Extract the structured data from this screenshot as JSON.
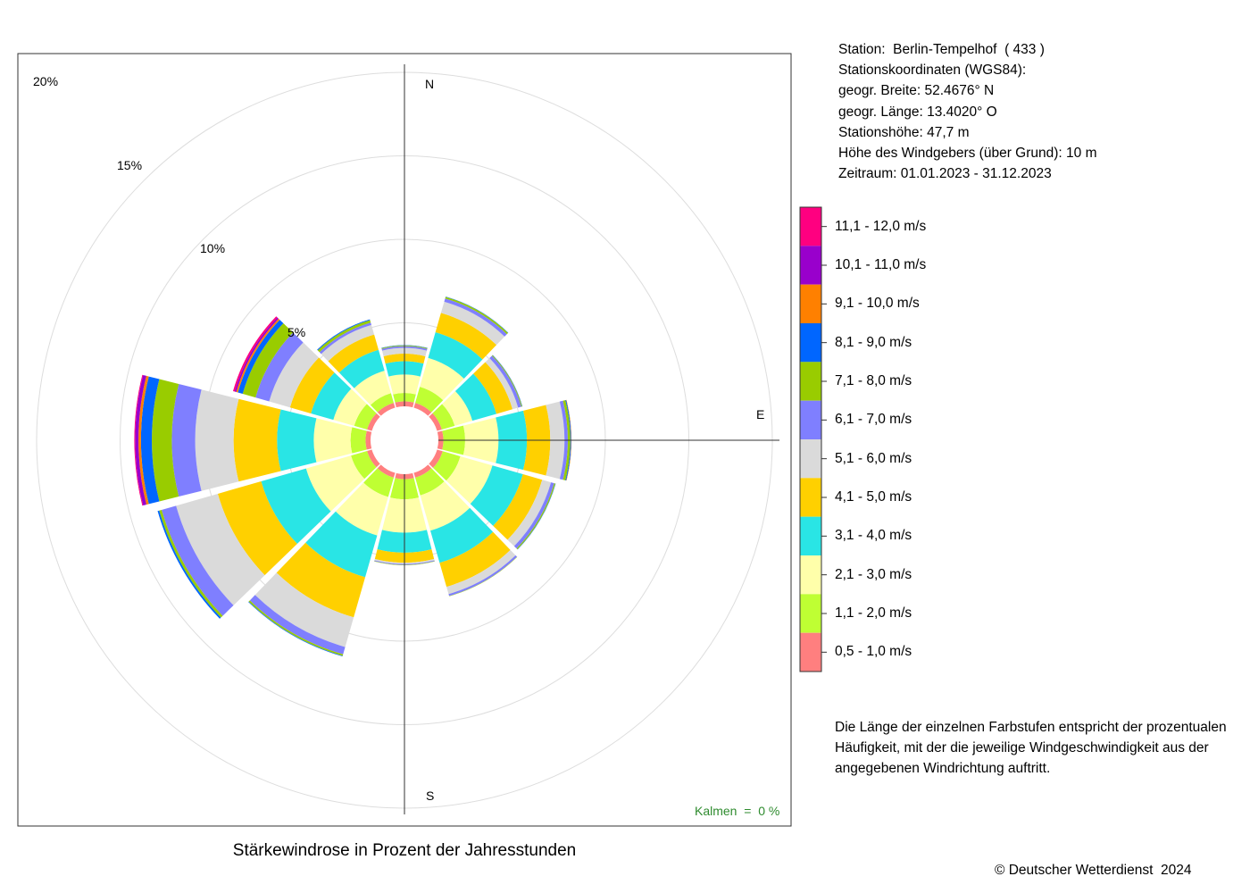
{
  "info": {
    "lines": [
      "Station:  Berlin-Tempelhof  ( 433 )",
      "Stationskoordinaten (WGS84):",
      "geogr. Breite: 52.4676° N",
      "geogr. Länge: 13.4020° O",
      "Stationshöhe: 47,7 m",
      "Höhe des Windgebers (über Grund): 10 m",
      "Zeitraum: 01.01.2023 - 31.12.2023"
    ]
  },
  "note": "Die Länge der einzelnen Farbstufen entspricht der prozentualen Häufigkeit, mit der die jeweilige Windgeschwindigkeit aus der angegebenen Windrichtung auftritt.",
  "caption": "Stärkewindrose in Prozent der Jahresstunden",
  "copyright": "© Deutscher Wetterdienst  2024",
  "calm_label": "Kalmen  =  0 %",
  "directions": {
    "n": "N",
    "e": "E",
    "s": "S"
  },
  "chart_data": {
    "type": "windrose",
    "unit": "%",
    "ring_labels": [
      "5%",
      "10%",
      "15%",
      "20%"
    ],
    "ring_values": [
      5,
      10,
      15,
      20
    ],
    "calm_percent": 0,
    "speed_classes": [
      {
        "label": "0,5 - 1,0 m/s",
        "color": "#ff7f7f"
      },
      {
        "label": "1,1 - 2,0 m/s",
        "color": "#bfff33"
      },
      {
        "label": "2,1 - 3,0 m/s",
        "color": "#ffffaa"
      },
      {
        "label": "3,1 - 4,0 m/s",
        "color": "#29e5e5"
      },
      {
        "label": "4,1 - 5,0 m/s",
        "color": "#ffd000"
      },
      {
        "label": "5,1 - 6,0 m/s",
        "color": "#dadada"
      },
      {
        "label": "6,1 - 7,0 m/s",
        "color": "#7f7fff"
      },
      {
        "label": "7,1 - 8,0 m/s",
        "color": "#99cc00"
      },
      {
        "label": "8,1 - 9,0 m/s",
        "color": "#0066ff"
      },
      {
        "label": "9,1 - 10,0 m/s",
        "color": "#ff8000"
      },
      {
        "label": "10,1 - 11,0 m/s",
        "color": "#9900cc"
      },
      {
        "label": "11,1 - 12,0 m/s",
        "color": "#ff0080"
      }
    ],
    "sectors": [
      {
        "direction_deg": 0,
        "values": [
          0.3,
          0.5,
          1.1,
          0.8,
          0.45,
          0.35,
          0.1,
          0.05,
          0.02,
          0,
          0,
          0
        ]
      },
      {
        "direction_deg": 30,
        "values": [
          0.3,
          1.0,
          1.8,
          1.6,
          1.2,
          0.7,
          0.2,
          0.1,
          0.02,
          0,
          0,
          0
        ]
      },
      {
        "direction_deg": 60,
        "values": [
          0.3,
          0.8,
          1.1,
          1.5,
          1.0,
          0.35,
          0.2,
          0.05,
          0.02,
          0,
          0,
          0
        ]
      },
      {
        "direction_deg": 90,
        "values": [
          0.3,
          1.3,
          2.0,
          1.7,
          1.4,
          0.85,
          0.2,
          0.15,
          0.05,
          0.02,
          0,
          0
        ]
      },
      {
        "direction_deg": 120,
        "values": [
          0.35,
          1.1,
          2.0,
          1.9,
          1.2,
          0.55,
          0.2,
          0.07,
          0.02,
          0,
          0,
          0
        ]
      },
      {
        "direction_deg": 150,
        "values": [
          0.3,
          1.1,
          2.2,
          2.0,
          1.5,
          0.45,
          0.12,
          0.02,
          0,
          0,
          0,
          0
        ]
      },
      {
        "direction_deg": 180,
        "values": [
          0.3,
          1.2,
          2.0,
          1.2,
          0.6,
          0.08,
          0.05,
          0.02,
          0,
          0,
          0,
          0
        ]
      },
      {
        "direction_deg": 210,
        "values": [
          0.3,
          1.2,
          2.4,
          2.6,
          2.5,
          1.85,
          0.45,
          0.1,
          0.03,
          0,
          0,
          0
        ]
      },
      {
        "direction_deg": 240,
        "values": [
          0.3,
          1.0,
          2.8,
          2.8,
          2.7,
          2.6,
          0.9,
          0.15,
          0.1,
          0,
          0,
          0
        ]
      },
      {
        "direction_deg": 270,
        "values": [
          0.3,
          0.9,
          2.2,
          2.2,
          2.6,
          2.3,
          1.4,
          1.2,
          0.65,
          0.15,
          0.2,
          0.05
        ]
      },
      {
        "direction_deg": 300,
        "values": [
          0.3,
          0.8,
          1.3,
          1.4,
          1.3,
          1.3,
          0.85,
          0.8,
          0.3,
          0.1,
          0.1,
          0.1
        ]
      },
      {
        "direction_deg": 330,
        "values": [
          0.3,
          0.6,
          1.4,
          1.3,
          0.95,
          0.6,
          0.15,
          0.15,
          0.05,
          0,
          0,
          0
        ]
      }
    ]
  }
}
